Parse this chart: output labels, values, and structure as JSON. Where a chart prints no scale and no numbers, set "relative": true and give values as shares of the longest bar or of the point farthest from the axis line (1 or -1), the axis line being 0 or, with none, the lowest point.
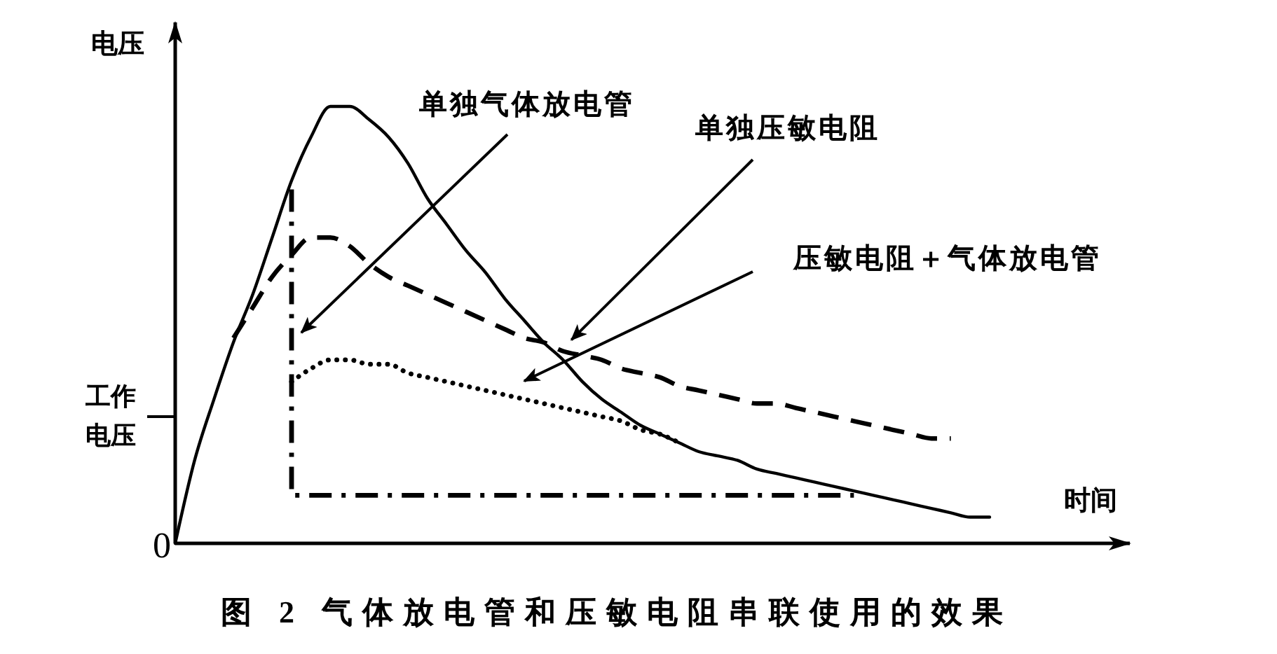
{
  "chart_data": {
    "type": "line",
    "title": "图 2 气体放电管和压敏电阻串联使用的效果",
    "xlabel": "时间",
    "ylabel": "电压",
    "relative": true,
    "ref_lines": [
      {
        "axis": "y",
        "value": 0.29,
        "label": "工作电压"
      }
    ],
    "annotations": [
      "0",
      "压敏电阻＋气体放电管"
    ],
    "categories": [
      null,
      null,
      null,
      null,
      null,
      null,
      null,
      null,
      null,
      null,
      null,
      null,
      null,
      null,
      null,
      null,
      null,
      null,
      null,
      null,
      null,
      null,
      null,
      null,
      null,
      null,
      null,
      null,
      null,
      null,
      null,
      null,
      null,
      null,
      null,
      null,
      null,
      null,
      null,
      null,
      null,
      null,
      null
    ],
    "series": [
      {
        "color": "#000000",
        "line_style": "solid",
        "values": [
          0,
          0.19,
          0.33,
          0.46,
          0.57,
          0.7,
          0.83,
          0.93,
          1,
          1,
          0.97,
          0.93,
          0.87,
          0.79,
          0.73,
          0.67,
          0.62,
          0.56,
          0.51,
          0.46,
          0.42,
          0.37,
          0.33,
          0.3,
          0.27,
          0.25,
          0.23,
          0.21,
          0.2,
          0.19,
          0.17,
          0.16,
          0.15,
          0.14,
          0.13,
          0.12,
          0.11,
          0.1,
          0.09,
          0.08,
          0.07,
          0.06,
          0.06
        ]
      },
      {
        "name": "单独压敏电阻",
        "color": "#000000",
        "line_style": "dashed",
        "values": [
          null,
          null,
          null,
          0.47,
          0.54,
          0.61,
          0.66,
          0.7,
          0.7,
          0.68,
          0.64,
          0.61,
          0.59,
          0.57,
          0.55,
          0.53,
          0.51,
          0.49,
          0.47,
          0.46,
          0.44,
          0.43,
          0.42,
          0.4,
          0.39,
          0.38,
          0.36,
          0.35,
          0.34,
          0.33,
          0.32,
          0.32,
          0.31,
          0.3,
          0.29,
          0.28,
          0.27,
          0.26,
          0.25,
          0.24,
          0.24,
          null,
          null
        ]
      },
      {
        "color": "#000000",
        "line_style": "dotted",
        "values": [
          null,
          null,
          null,
          null,
          null,
          null,
          0.37,
          0.4,
          0.42,
          0.42,
          0.41,
          0.41,
          0.39,
          0.38,
          0.37,
          0.36,
          0.35,
          0.34,
          0.33,
          0.32,
          0.31,
          0.3,
          0.29,
          0.28,
          0.26,
          0.25,
          0.23,
          null,
          null,
          null,
          null,
          null,
          null,
          null,
          null,
          null,
          null,
          null,
          null,
          null,
          null,
          null,
          null
        ]
      },
      {
        "type": "step",
        "name": "单独气体放电管",
        "color": "#000000",
        "line_style": "dashdot",
        "values": [
          null,
          null,
          null,
          null,
          null,
          null,
          0.81,
          0.11,
          0.11,
          0.11,
          0.11,
          0.11,
          0.11,
          0.11,
          0.11,
          0.11,
          0.11,
          0.11,
          0.11,
          0.11,
          0.11,
          0.11,
          0.11,
          0.11,
          0.11,
          0.11,
          0.11,
          0.11,
          0.11,
          0.11,
          0.11,
          0.11,
          0.11,
          0.11,
          0.11,
          0.11,
          null,
          null,
          null,
          null,
          null,
          null,
          null
        ]
      }
    ]
  }
}
